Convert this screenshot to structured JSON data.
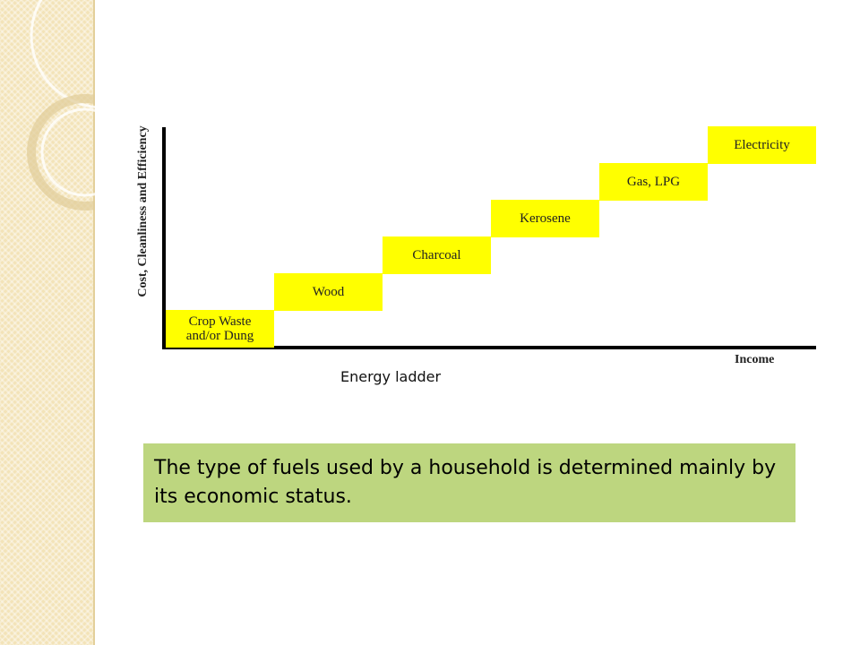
{
  "diagram": {
    "y_axis_label": "Cost, Cleanliness and Efficiency",
    "x_axis_label": "Income",
    "steps": [
      "Crop Waste and/or Dung",
      "Wood",
      "Charcoal",
      "Kerosene",
      "Gas, LPG",
      "Electricity"
    ],
    "caption": "Energy ladder"
  },
  "callout": "The type of fuels used by a household is determined mainly by its economic status."
}
